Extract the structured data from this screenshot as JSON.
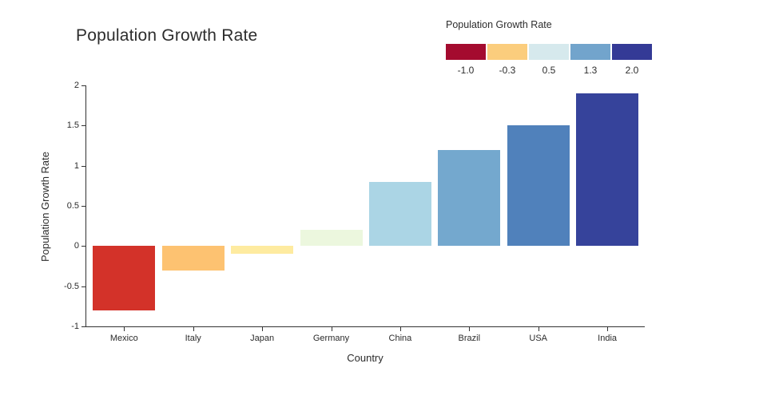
{
  "title": "Population Growth Rate",
  "legend": {
    "title": "Population Growth Rate",
    "entries": [
      {
        "label": "-1.0",
        "color": "#a40b2f"
      },
      {
        "label": "-0.3",
        "color": "#fbcd7d"
      },
      {
        "label": "0.5",
        "color": "#d6e9ed"
      },
      {
        "label": "1.3",
        "color": "#72a4cc"
      },
      {
        "label": "2.0",
        "color": "#343a96"
      }
    ]
  },
  "chart_data": {
    "type": "bar",
    "title": "Population Growth Rate",
    "xlabel": "Country",
    "ylabel": "Population Growth Rate",
    "categories": [
      "Mexico",
      "Italy",
      "Japan",
      "Germany",
      "China",
      "Brazil",
      "USA",
      "India"
    ],
    "values": [
      -0.8,
      -0.3,
      -0.1,
      0.2,
      0.8,
      1.2,
      1.5,
      1.9
    ],
    "bar_colors": [
      "#d33229",
      "#fdc271",
      "#feeba0",
      "#ecf7de",
      "#abd5e5",
      "#74a8ce",
      "#5081bb",
      "#36439b"
    ],
    "ylim": [
      -1,
      2
    ],
    "ytick_labels": [
      "2",
      "1.5",
      "1",
      "0.5",
      "0",
      "-0.5",
      "-1"
    ],
    "yticks": [
      2,
      1.5,
      1,
      0.5,
      0,
      -0.5,
      -1
    ],
    "grid": false,
    "legend_position": "top-right",
    "legend_title": "Population Growth Rate"
  }
}
